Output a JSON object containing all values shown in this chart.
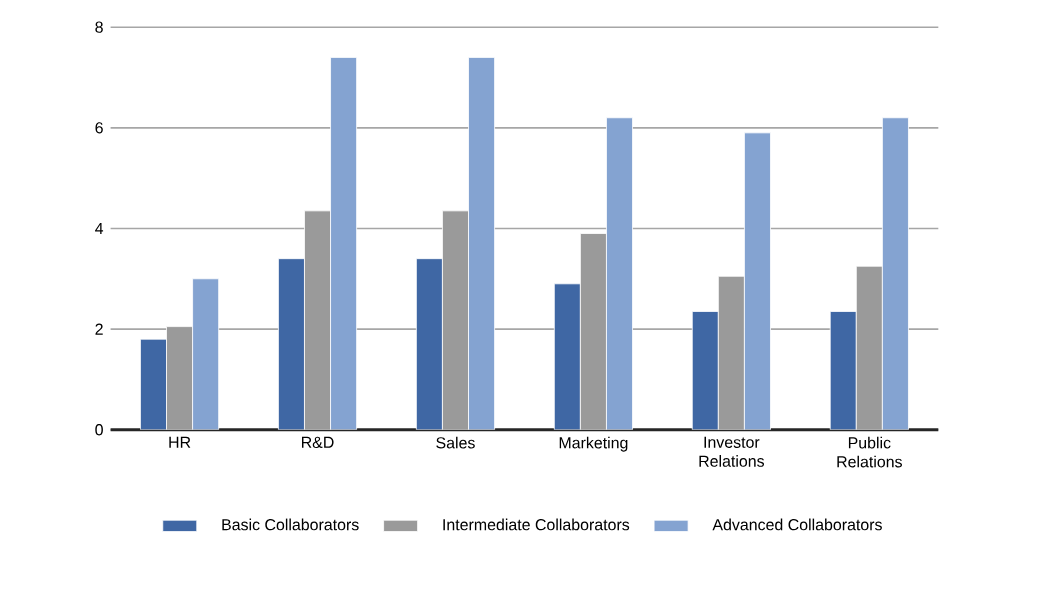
{
  "chart_data": {
    "type": "bar",
    "categories": [
      "HR",
      "R&D",
      "Sales",
      "Marketing",
      "Investor Relations",
      "Public Relations"
    ],
    "series": [
      {
        "name": "Basic Collaborators",
        "color": "#3f67a4",
        "values": [
          1.8,
          3.4,
          3.4,
          2.9,
          2.35,
          2.35
        ]
      },
      {
        "name": "Intermediate Collaborators",
        "color": "#9a9a9a",
        "values": [
          2.05,
          4.35,
          4.35,
          3.9,
          3.05,
          3.25
        ]
      },
      {
        "name": "Advanced Collaborators",
        "color": "#84a3d1",
        "values": [
          3.0,
          7.4,
          7.4,
          6.2,
          5.9,
          6.2
        ]
      }
    ],
    "ylim": [
      0,
      8
    ],
    "yticks": [
      0,
      2,
      4,
      6,
      8
    ],
    "grid": "y",
    "legend": "bottom"
  }
}
